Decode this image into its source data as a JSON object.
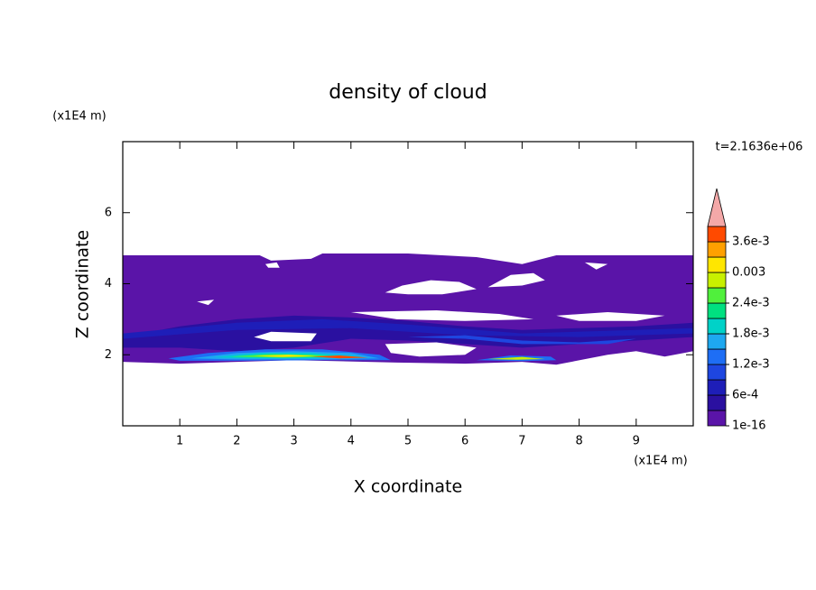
{
  "chart_data": {
    "type": "contour",
    "title": "density of cloud",
    "x_label": "X coordinate",
    "y_label": "Z coordinate",
    "x_unit": "(x1E4 m)",
    "y_unit": "(x1E4 m)",
    "annotation": "t=2.1636e+06",
    "xlim": [
      0,
      10
    ],
    "xticks": [
      1,
      2,
      3,
      4,
      5,
      6,
      7,
      8,
      9
    ],
    "ylim": [
      0,
      8
    ],
    "yticks": [
      2,
      4,
      6
    ],
    "levels": [
      1e-16,
      0.0003,
      0.0006,
      0.0009,
      0.0012,
      0.0015,
      0.0018,
      0.0021,
      0.0024,
      0.0027,
      0.003,
      0.0033,
      0.0036
    ],
    "colors": [
      "#5a14a8",
      "#2a10a0",
      "#1e1eb8",
      "#1e46e0",
      "#1e6ef5",
      "#1ea8f0",
      "#00d2c8",
      "#00e080",
      "#50f03c",
      "#c8f000",
      "#ffe600",
      "#ffa000",
      "#ff4a00"
    ],
    "overflow_color": "#f4a8a8",
    "colorbar_ticks": [
      {
        "value": 1e-16,
        "label": "1e-16"
      },
      {
        "value": 0.0006,
        "label": "6e-4"
      },
      {
        "value": 0.0012,
        "label": "1.2e-3"
      },
      {
        "value": 0.0018,
        "label": "1.8e-3"
      },
      {
        "value": 0.0024,
        "label": "2.4e-3"
      },
      {
        "value": 0.003,
        "label": "0.003"
      },
      {
        "value": 0.0036,
        "label": "3.6e-3"
      }
    ]
  }
}
